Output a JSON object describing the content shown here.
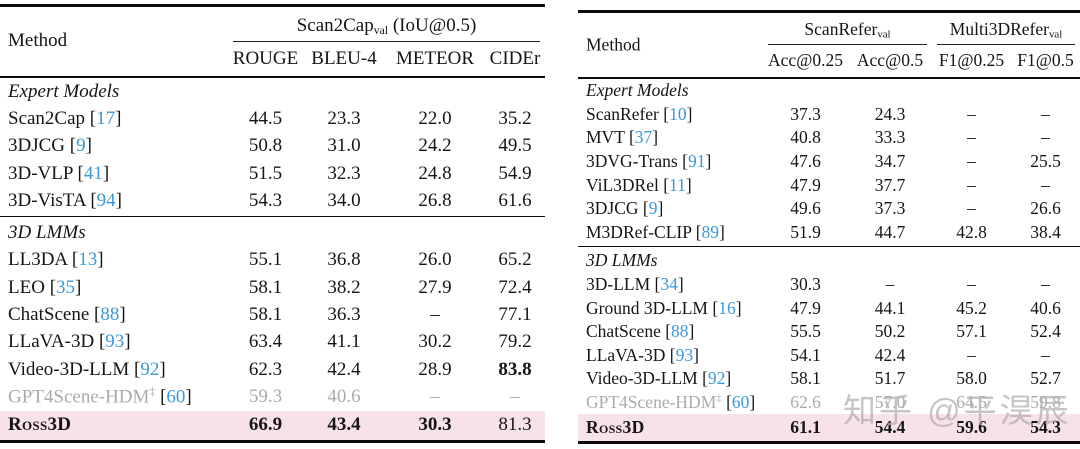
{
  "colors": {
    "text": "#151515",
    "rule": "#0c0c0c",
    "citation": "#3A99D8",
    "muted": "#ABABAB",
    "highlight_row": "#F8E2E9",
    "watermark": "#B5ACAC"
  },
  "watermark": {
    "text": "知乎 @平淏辰"
  },
  "tables": [
    {
      "id": "scan2cap-table",
      "method_header": "Method",
      "groups": [
        {
          "label": "Scan2Cap",
          "sub": "val",
          "suffix": " (IoU@0.5)",
          "span": 4
        }
      ],
      "columns": [
        "ROUGE",
        "BLEU-4",
        "METEOR",
        "CIDEr"
      ],
      "sections": [
        {
          "label": "Expert Models",
          "rows": [
            {
              "name": "Scan2Cap",
              "cite": "17",
              "values": [
                "44.5",
                "23.3",
                "22.0",
                "35.2"
              ]
            },
            {
              "name": "3DJCG",
              "cite": "9",
              "values": [
                "50.8",
                "31.0",
                "24.2",
                "49.5"
              ]
            },
            {
              "name": "3D-VLP",
              "cite": "41",
              "values": [
                "51.5",
                "32.3",
                "24.8",
                "54.9"
              ]
            },
            {
              "name": "3D-VisTA",
              "cite": "94",
              "values": [
                "54.3",
                "34.0",
                "26.8",
                "61.6"
              ]
            }
          ]
        },
        {
          "label": "3D LMMs",
          "rows": [
            {
              "name": "LL3DA",
              "cite": "13",
              "values": [
                "55.1",
                "36.8",
                "26.0",
                "65.2"
              ]
            },
            {
              "name": "LEO",
              "cite": "35",
              "values": [
                "58.1",
                "38.2",
                "27.9",
                "72.4"
              ]
            },
            {
              "name": "ChatScene",
              "cite": "88",
              "values": [
                "58.1",
                "36.3",
                "–",
                "77.1"
              ]
            },
            {
              "name": "LLaVA-3D",
              "cite": "93",
              "values": [
                "63.4",
                "41.1",
                "30.2",
                "79.2"
              ]
            },
            {
              "name": "Video-3D-LLM",
              "cite": "92",
              "values": [
                "62.3",
                "42.4",
                "28.9",
                "83.8"
              ],
              "bold": [
                3
              ]
            },
            {
              "name": "GPT4Scene-HDM",
              "sup": "‡",
              "cite": "60",
              "gray": true,
              "values": [
                "59.3",
                "40.6",
                "–",
                "–"
              ]
            },
            {
              "name": "Ross3D",
              "smallcaps": true,
              "highlight": true,
              "values": [
                "66.9",
                "43.4",
                "30.3",
                "81.3"
              ],
              "bold": [
                0,
                1,
                2
              ]
            }
          ]
        }
      ]
    },
    {
      "id": "grounding-table",
      "method_header": "Method",
      "groups": [
        {
          "label": "ScanRefer",
          "sub": "val",
          "suffix": "",
          "span": 2
        },
        {
          "label": "Multi3DRefer",
          "sub": "val",
          "suffix": "",
          "span": 2
        }
      ],
      "columns": [
        "Acc@0.25",
        "Acc@0.5",
        "F1@0.25",
        "F1@0.5"
      ],
      "sections": [
        {
          "label": "Expert Models",
          "rows": [
            {
              "name": "ScanRefer",
              "cite": "10",
              "values": [
                "37.3",
                "24.3",
                "–",
                "–"
              ]
            },
            {
              "name": "MVT",
              "cite": "37",
              "values": [
                "40.8",
                "33.3",
                "–",
                "–"
              ]
            },
            {
              "name": "3DVG-Trans",
              "cite": "91",
              "values": [
                "47.6",
                "34.7",
                "–",
                "25.5"
              ]
            },
            {
              "name": "ViL3DRel",
              "cite": "11",
              "values": [
                "47.9",
                "37.7",
                "–",
                "–"
              ]
            },
            {
              "name": "3DJCG",
              "cite": "9",
              "values": [
                "49.6",
                "37.3",
                "–",
                "26.6"
              ]
            },
            {
              "name": "M3DRef-CLIP",
              "cite": "89",
              "values": [
                "51.9",
                "44.7",
                "42.8",
                "38.4"
              ]
            }
          ]
        },
        {
          "label": "3D LMMs",
          "rows": [
            {
              "name": "3D-LLM",
              "cite": "34",
              "values": [
                "30.3",
                "–",
                "–",
                "–"
              ]
            },
            {
              "name": "Ground 3D-LLM",
              "cite": "16",
              "values": [
                "47.9",
                "44.1",
                "45.2",
                "40.6"
              ]
            },
            {
              "name": "ChatScene",
              "cite": "88",
              "values": [
                "55.5",
                "50.2",
                "57.1",
                "52.4"
              ]
            },
            {
              "name": "LLaVA-3D",
              "cite": "93",
              "values": [
                "54.1",
                "42.4",
                "–",
                "–"
              ]
            },
            {
              "name": "Video-3D-LLM",
              "cite": "92",
              "values": [
                "58.1",
                "51.7",
                "58.0",
                "52.7"
              ]
            },
            {
              "name": "GPT4Scene-HDM",
              "sup": "‡",
              "cite": "60",
              "gray": true,
              "values": [
                "62.6",
                "57.0",
                "64.5",
                "59.8"
              ]
            },
            {
              "name": "Ross3D",
              "smallcaps": true,
              "highlight": true,
              "values": [
                "61.1",
                "54.4",
                "59.6",
                "54.3"
              ],
              "bold": [
                0,
                1,
                2,
                3
              ]
            }
          ]
        }
      ]
    }
  ]
}
